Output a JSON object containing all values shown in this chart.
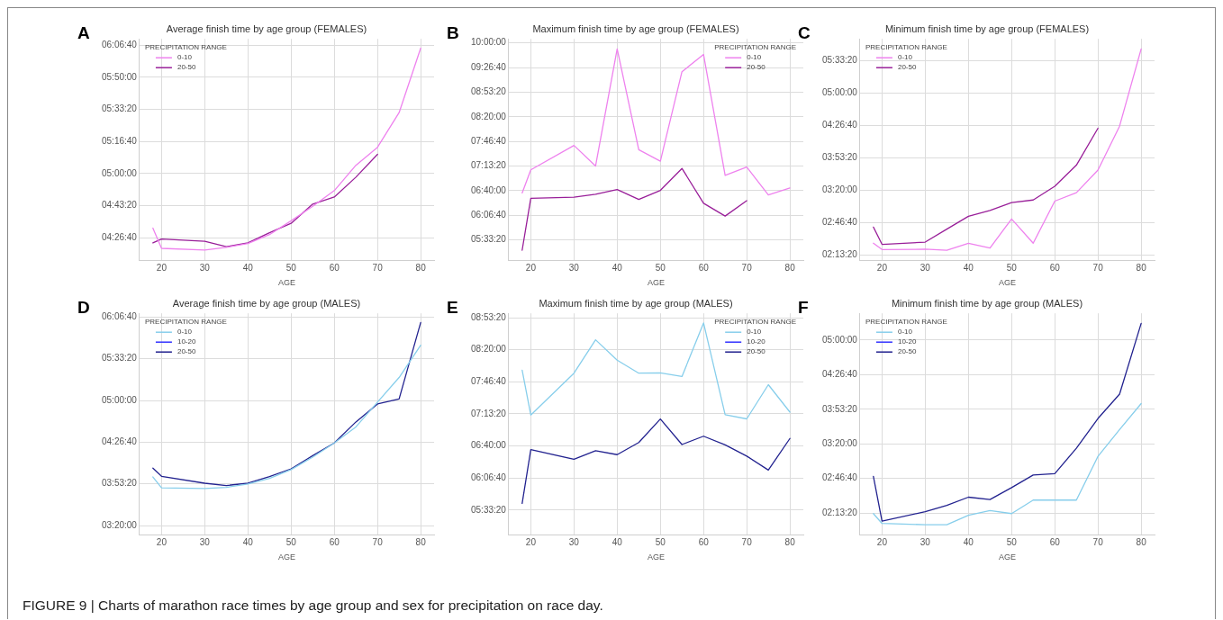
{
  "chart_data": [
    {
      "type": "line",
      "title": "Average finish time by age group (FEMALES)",
      "xlabel": "AGE",
      "legend_title": "PRECIPITATION RANGE",
      "legend": "top left",
      "grid": true,
      "annotations": [
        "A",
        "FIGURE 9 | Charts of marathon race times by age group and sex for precipitation on race day."
      ],
      "x": [
        18,
        20,
        30,
        35,
        40,
        45,
        50,
        55,
        60,
        65,
        70,
        75,
        80
      ],
      "xlim": [
        14.9,
        83.1
      ],
      "xticks": [
        20,
        30,
        40,
        50,
        60,
        70,
        80
      ],
      "ylim": [
        15300,
        22200
      ],
      "yticks": [
        {
          "value": 16000,
          "label": "04:26:40"
        },
        {
          "value": 17000,
          "label": "04:43:20"
        },
        {
          "value": 18000,
          "label": "05:00:00"
        },
        {
          "value": 19000,
          "label": "05:16:40"
        },
        {
          "value": 20000,
          "label": "05:33:20"
        },
        {
          "value": 21000,
          "label": "05:50:00"
        },
        {
          "value": 22000,
          "label": "06:06:40"
        }
      ],
      "series": [
        {
          "name": "0-10",
          "color": "#ee82ee",
          "values": [
            16300,
            15670,
            15620,
            15700,
            15820,
            16100,
            16530,
            16980,
            17470,
            18260,
            18820,
            19900,
            21910
          ]
        },
        {
          "name": "20-50",
          "color": "#991f99",
          "values": [
            15840,
            15960,
            15890,
            15720,
            15840,
            16160,
            16450,
            17050,
            17270,
            17890,
            18600,
            null,
            null
          ]
        }
      ]
    },
    {
      "type": "line",
      "title": "Maximum finish time by age group (FEMALES)",
      "xlabel": "AGE",
      "legend_title": "PRECIPITATION RANGE",
      "legend": "top right",
      "grid": true,
      "annotations": [
        "B"
      ],
      "x": [
        18,
        20,
        30,
        35,
        40,
        45,
        50,
        55,
        60,
        65,
        70,
        75,
        80
      ],
      "xlim": [
        14.9,
        83.1
      ],
      "xticks": [
        20,
        30,
        40,
        50,
        60,
        70,
        80
      ],
      "ylim": [
        18340,
        36330
      ],
      "yticks": [
        {
          "value": 20000,
          "label": "05:33:20"
        },
        {
          "value": 22000,
          "label": "06:06:40"
        },
        {
          "value": 24000,
          "label": "06:40:00"
        },
        {
          "value": 26000,
          "label": "07:13:20"
        },
        {
          "value": 28000,
          "label": "07:46:40"
        },
        {
          "value": 30000,
          "label": "08:20:00"
        },
        {
          "value": 32000,
          "label": "08:53:20"
        },
        {
          "value": 34000,
          "label": "09:26:40"
        },
        {
          "value": 36000,
          "label": "10:00:00"
        }
      ],
      "series": [
        {
          "name": "0-10",
          "color": "#ee82ee",
          "values": [
            23810,
            25690,
            27670,
            26000,
            35510,
            27320,
            26390,
            33660,
            35060,
            25240,
            25920,
            23650,
            24210
          ]
        },
        {
          "name": "20-50",
          "color": "#991f99",
          "values": [
            19160,
            23370,
            23460,
            23700,
            24090,
            23280,
            24020,
            25800,
            22970,
            21930,
            23180,
            null,
            null
          ]
        }
      ]
    },
    {
      "type": "line",
      "title": "Minimum finish time by age group (FEMALES)",
      "xlabel": "AGE",
      "legend_title": "PRECIPITATION RANGE",
      "legend": "top left",
      "grid": true,
      "annotations": [
        "C"
      ],
      "x": [
        18,
        20,
        30,
        35,
        40,
        45,
        50,
        55,
        60,
        65,
        70,
        75,
        80
      ],
      "xlim": [
        14.9,
        83.1
      ],
      "xticks": [
        20,
        30,
        40,
        50,
        60,
        70,
        80
      ],
      "ylim": [
        7680,
        21350
      ],
      "yticks": [
        {
          "value": 8000,
          "label": "02:13:20"
        },
        {
          "value": 10000,
          "label": "02:46:40"
        },
        {
          "value": 12000,
          "label": "03:20:00"
        },
        {
          "value": 14000,
          "label": "03:53:20"
        },
        {
          "value": 16000,
          "label": "04:26:40"
        },
        {
          "value": 18000,
          "label": "05:00:00"
        },
        {
          "value": 20000,
          "label": "05:33:20"
        }
      ],
      "series": [
        {
          "name": "0-10",
          "color": "#ee82ee",
          "values": [
            8730,
            8340,
            8360,
            8300,
            8730,
            8440,
            10230,
            8730,
            11330,
            11850,
            13250,
            15960,
            20730
          ]
        },
        {
          "name": "20-50",
          "color": "#991f99",
          "values": [
            9730,
            8660,
            8800,
            9600,
            10390,
            10760,
            11240,
            11400,
            12250,
            13550,
            15830,
            null,
            null
          ]
        }
      ]
    },
    {
      "type": "line",
      "title": "Average finish time by age group (MALES)",
      "xlabel": "AGE",
      "legend_title": "PRECIPITATION RANGE",
      "legend": "top left",
      "grid": true,
      "annotations": [
        "D"
      ],
      "x": [
        18,
        20,
        30,
        35,
        40,
        45,
        50,
        55,
        60,
        65,
        70,
        75,
        80
      ],
      "xlim": [
        14.9,
        83.1
      ],
      "xticks": [
        20,
        30,
        40,
        50,
        60,
        70,
        80
      ],
      "ylim": [
        11560,
        22180
      ],
      "yticks": [
        {
          "value": 12000,
          "label": "03:20:00"
        },
        {
          "value": 14000,
          "label": "03:53:20"
        },
        {
          "value": 16000,
          "label": "04:26:40"
        },
        {
          "value": 18000,
          "label": "05:00:00"
        },
        {
          "value": 20000,
          "label": "05:33:20"
        },
        {
          "value": 22000,
          "label": "06:06:40"
        }
      ],
      "series": [
        {
          "name": "0-10",
          "color": "#87ceeb",
          "values": [
            14330,
            13810,
            13780,
            13830,
            13990,
            14260,
            14680,
            15280,
            15960,
            16730,
            17920,
            19100,
            20650
          ]
        },
        {
          "name": "10-20",
          "color": "#3333ff",
          "values": [
            null,
            null,
            null,
            null,
            null,
            null,
            null,
            null,
            null,
            null,
            null,
            null,
            null
          ]
        },
        {
          "name": "20-50",
          "color": "#22228f",
          "values": [
            14750,
            14360,
            14030,
            13920,
            14030,
            14350,
            14720,
            15350,
            15960,
            16970,
            17830,
            18070,
            21740
          ]
        }
      ]
    },
    {
      "type": "line",
      "title": "Maximum finish time by age group (MALES)",
      "xlabel": "AGE",
      "legend_title": "PRECIPITATION RANGE",
      "legend": "top right",
      "grid": true,
      "annotations": [
        "E"
      ],
      "x": [
        18,
        20,
        30,
        35,
        40,
        45,
        50,
        55,
        60,
        65,
        70,
        75,
        80
      ],
      "xlim": [
        14.9,
        83.1
      ],
      "xticks": [
        20,
        30,
        40,
        50,
        60,
        70,
        80
      ],
      "ylim": [
        18470,
        32270
      ],
      "yticks": [
        {
          "value": 20000,
          "label": "05:33:20"
        },
        {
          "value": 22000,
          "label": "06:06:40"
        },
        {
          "value": 24000,
          "label": "06:40:00"
        },
        {
          "value": 26000,
          "label": "07:13:20"
        },
        {
          "value": 28000,
          "label": "07:46:40"
        },
        {
          "value": 30000,
          "label": "08:20:00"
        },
        {
          "value": 32000,
          "label": "08:53:20"
        }
      ],
      "series": [
        {
          "name": "0-10",
          "color": "#87ceeb",
          "values": [
            28720,
            25930,
            28540,
            30620,
            29350,
            28540,
            28560,
            28330,
            31670,
            25950,
            25690,
            27820,
            26110
          ]
        },
        {
          "name": "10-20",
          "color": "#3333ff",
          "values": [
            null,
            null,
            null,
            null,
            null,
            null,
            null,
            null,
            null,
            null,
            null,
            null,
            null
          ]
        },
        {
          "name": "20-50",
          "color": "#22228f",
          "values": [
            20420,
            23770,
            23170,
            23710,
            23460,
            24220,
            25680,
            24090,
            24610,
            24070,
            23370,
            22500,
            24470
          ]
        }
      ]
    },
    {
      "type": "line",
      "title": "Minimum finish time by age group (MALES)",
      "xlabel": "AGE",
      "legend_title": "PRECIPITATION RANGE",
      "legend": "top left",
      "grid": true,
      "annotations": [
        "F"
      ],
      "x": [
        18,
        20,
        30,
        35,
        40,
        45,
        50,
        55,
        60,
        65,
        70,
        75,
        80
      ],
      "xlim": [
        14.9,
        83.1
      ],
      "xticks": [
        20,
        30,
        40,
        50,
        60,
        70,
        80
      ],
      "ylim": [
        6750,
        19550
      ],
      "yticks": [
        {
          "value": 8000,
          "label": "02:13:20"
        },
        {
          "value": 10000,
          "label": "02:46:40"
        },
        {
          "value": 12000,
          "label": "03:20:00"
        },
        {
          "value": 14000,
          "label": "03:53:20"
        },
        {
          "value": 16000,
          "label": "04:26:40"
        },
        {
          "value": 18000,
          "label": "05:00:00"
        }
      ],
      "series": [
        {
          "name": "0-10",
          "color": "#87ceeb",
          "values": [
            7970,
            7400,
            7330,
            7330,
            7870,
            8150,
            7970,
            8750,
            8750,
            8750,
            11280,
            12830,
            14330
          ]
        },
        {
          "name": "10-20",
          "color": "#3333ff",
          "values": [
            null,
            null,
            null,
            null,
            null,
            null,
            null,
            null,
            null,
            null,
            null,
            null,
            null
          ]
        },
        {
          "name": "20-50",
          "color": "#22228f",
          "values": [
            10120,
            7530,
            8080,
            8450,
            8920,
            8780,
            9470,
            10200,
            10280,
            11750,
            13470,
            14880,
            18970
          ]
        }
      ]
    }
  ]
}
